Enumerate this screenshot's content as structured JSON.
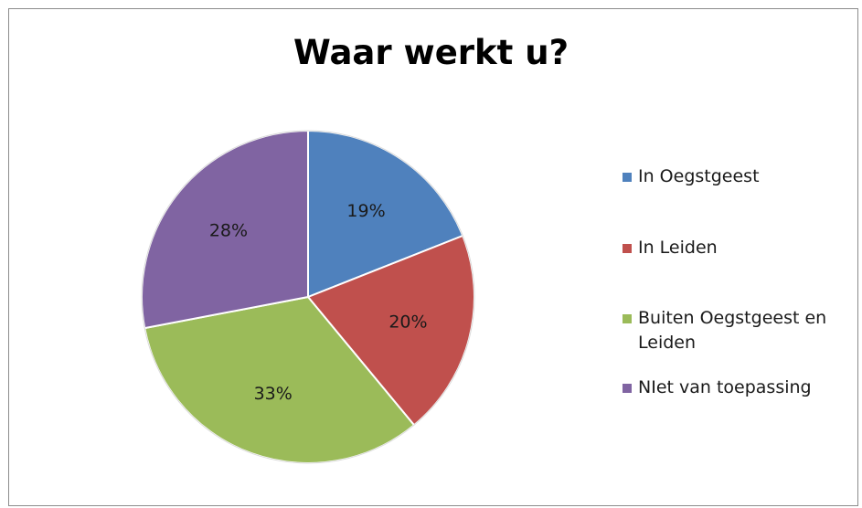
{
  "chart_data": {
    "type": "pie",
    "title": "Waar werkt u?",
    "categories": [
      "In Oegstgeest",
      "In Leiden",
      "Buiten Oegstgeest en Leiden",
      "NIet van toepassing"
    ],
    "values": [
      19,
      20,
      33,
      28
    ],
    "data_labels": [
      "19%",
      "20%",
      "33%",
      "28%"
    ],
    "colors": [
      "#4f81bd",
      "#c0504d",
      "#9bbb59",
      "#8064a2"
    ],
    "legend_position": "right",
    "start_angle": "top",
    "direction": "clockwise"
  }
}
